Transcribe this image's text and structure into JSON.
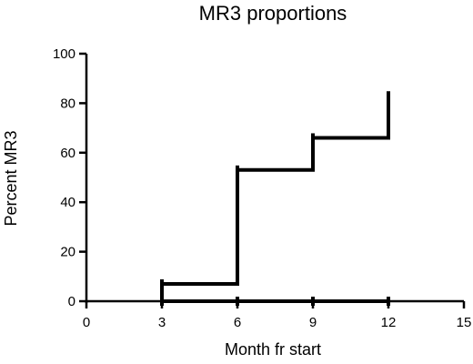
{
  "chart_data": {
    "type": "line",
    "subtype": "step",
    "title": "MR3 proportions",
    "xlabel": "Month fr start",
    "ylabel": "Percent MR3",
    "xlim": [
      0,
      15
    ],
    "ylim": [
      0,
      100
    ],
    "xticks": [
      0,
      3,
      6,
      9,
      12,
      15
    ],
    "yticks": [
      0,
      20,
      40,
      60,
      80,
      100
    ],
    "grid": false,
    "series": [
      {
        "x": [
          3,
          6,
          9,
          12
        ],
        "y": [
          7,
          53,
          66,
          83
        ]
      },
      {
        "x": [
          3,
          6,
          9,
          12
        ],
        "y": [
          0,
          0,
          0,
          0
        ]
      }
    ]
  }
}
